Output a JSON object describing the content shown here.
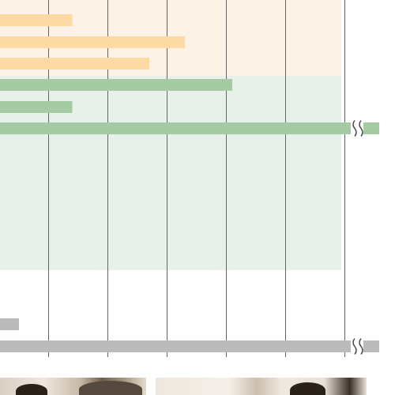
{
  "chart_data": {
    "type": "bar",
    "orientation": "horizontal",
    "x_axis_labels_visible": false,
    "category_labels_visible": false,
    "gridlines": "vertical",
    "groups": [
      {
        "color": "#fdd9a3",
        "background": "#fdf2e6",
        "values": [
          1.3,
          3.2,
          2.6
        ]
      },
      {
        "color": "#a4cba4",
        "background": "#e8f0ea",
        "values": [
          4.0,
          1.3,
          6.5
        ],
        "broken_axis": [
          false,
          false,
          true
        ]
      },
      {
        "color": "#bbbbbb",
        "background": "#ffffff",
        "values": [
          0.4,
          6.5
        ],
        "broken_axis": [
          false,
          true
        ]
      }
    ],
    "gridline_values": [
      0.9,
      1.9,
      2.9,
      3.9,
      4.9,
      5.9
    ],
    "break_mark_color": "#444444"
  },
  "photos": {
    "left": "photo",
    "right": "photo"
  }
}
